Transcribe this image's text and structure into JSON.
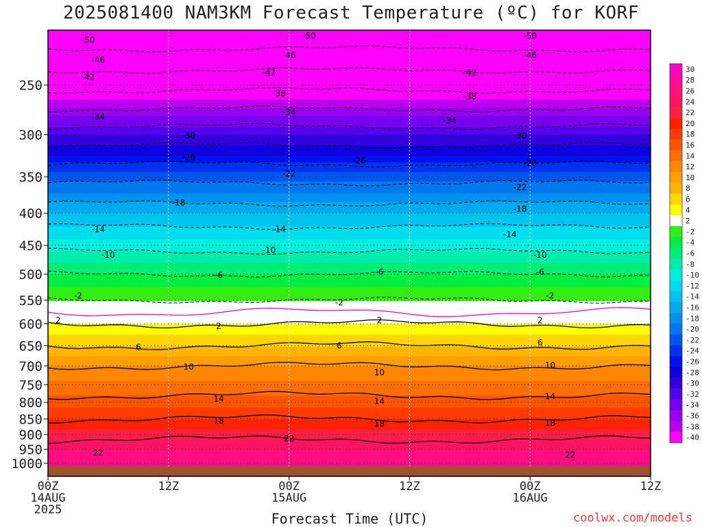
{
  "title": "2025081400 NAM3KM Forecast Temperature (ºC) for KORF",
  "chart_data": {
    "type": "heatmap",
    "title": "2025081400 NAM3KM Forecast Temperature (ºC) for KORF",
    "xlabel": "Forecast Time (UTC)",
    "ylabel": "",
    "x_ticks": [
      {
        "hour": 0,
        "lines": [
          "00Z",
          "14AUG",
          "2025"
        ]
      },
      {
        "hour": 12,
        "lines": [
          "12Z"
        ]
      },
      {
        "hour": 24,
        "lines": [
          "00Z",
          "15AUG"
        ]
      },
      {
        "hour": 36,
        "lines": [
          "12Z"
        ]
      },
      {
        "hour": 48,
        "lines": [
          "00Z",
          "16AUG"
        ]
      },
      {
        "hour": 60,
        "lines": [
          "12Z"
        ]
      }
    ],
    "xlim": [
      0,
      60
    ],
    "y_ticks": [
      250,
      300,
      350,
      400,
      450,
      500,
      550,
      600,
      650,
      700,
      750,
      800,
      850,
      900,
      950,
      1000
    ],
    "ylim": [
      1025,
      200
    ],
    "y_scale": "log-pressure",
    "grid": true,
    "colorbar": {
      "labels": [
        "30",
        "28",
        "26",
        "24",
        "22",
        "20",
        "18",
        "16",
        "14",
        "12",
        "10",
        "8",
        "6",
        "4",
        "2",
        "-2",
        "-4",
        "-6",
        "-8",
        "-10",
        "-12",
        "-14",
        "-16",
        "-18",
        "-20",
        "-22",
        "-24",
        "-26",
        "-28",
        "-30",
        "-32",
        "-34",
        "-36",
        "-38",
        "-40"
      ],
      "colors": [
        "#ff00cc",
        "#ff0a9b",
        "#ff0f82",
        "#ff1464",
        "#ff1e46",
        "#ff2200",
        "#ff3c00",
        "#ff5500",
        "#ff6e00",
        "#ff8700",
        "#ff9e00",
        "#ffb400",
        "#ffd500",
        "#ffff00",
        "#ffffff",
        "#33ee11",
        "#00ee44",
        "#00ee77",
        "#00eeaa",
        "#00eedd",
        "#00ddee",
        "#00c4ee",
        "#00aaee",
        "#0090ee",
        "#0077ee",
        "#0055ee",
        "#0033ee",
        "#0011ee",
        "#1100dd",
        "#3300dd",
        "#5500ee",
        "#7700ee",
        "#9900ee",
        "#bb00ee",
        "#ff00ff"
      ],
      "placement": "right"
    },
    "contour_labels": [
      {
        "text": "-50",
        "hour": 4,
        "p": 212
      },
      {
        "text": "-50",
        "hour": 26,
        "p": 209
      },
      {
        "text": "-50",
        "hour": 48,
        "p": 209
      },
      {
        "text": "-46",
        "hour": 5,
        "p": 228
      },
      {
        "text": "-46",
        "hour": 24,
        "p": 224
      },
      {
        "text": "-46",
        "hour": 48,
        "p": 224
      },
      {
        "text": "-42",
        "hour": 4,
        "p": 243
      },
      {
        "text": "-42",
        "hour": 22,
        "p": 239
      },
      {
        "text": "-42",
        "hour": 42,
        "p": 239
      },
      {
        "text": "-38",
        "hour": 23,
        "p": 258
      },
      {
        "text": "-38",
        "hour": 42,
        "p": 261
      },
      {
        "text": "-34",
        "hour": 5,
        "p": 281
      },
      {
        "text": "-34",
        "hour": 24,
        "p": 276
      },
      {
        "text": "-34",
        "hour": 40,
        "p": 285
      },
      {
        "text": "-30",
        "hour": 14,
        "p": 301
      },
      {
        "text": "-30",
        "hour": 47,
        "p": 301
      },
      {
        "text": "-26",
        "hour": 14,
        "p": 326
      },
      {
        "text": "-26",
        "hour": 31,
        "p": 330
      },
      {
        "text": "-26",
        "hour": 48,
        "p": 333
      },
      {
        "text": "-22",
        "hour": 24,
        "p": 346
      },
      {
        "text": "-22",
        "hour": 47,
        "p": 364
      },
      {
        "text": "-18",
        "hour": 13,
        "p": 385
      },
      {
        "text": "-18",
        "hour": 47,
        "p": 394
      },
      {
        "text": "-14",
        "hour": 5,
        "p": 424
      },
      {
        "text": "-14",
        "hour": 23,
        "p": 424
      },
      {
        "text": "-14",
        "hour": 46,
        "p": 432
      },
      {
        "text": "-10",
        "hour": 6,
        "p": 466
      },
      {
        "text": "-10",
        "hour": 22,
        "p": 458
      },
      {
        "text": "-10",
        "hour": 49,
        "p": 466
      },
      {
        "text": "-6",
        "hour": 17,
        "p": 502
      },
      {
        "text": "-6",
        "hour": 33,
        "p": 496
      },
      {
        "text": "-6",
        "hour": 49,
        "p": 496
      },
      {
        "text": "-2",
        "hour": 3,
        "p": 541
      },
      {
        "text": "-2",
        "hour": 29,
        "p": 555
      },
      {
        "text": "-2",
        "hour": 50,
        "p": 541
      },
      {
        "text": "2",
        "hour": 1,
        "p": 592
      },
      {
        "text": "2",
        "hour": 17,
        "p": 605
      },
      {
        "text": "2",
        "hour": 33,
        "p": 592
      },
      {
        "text": "2",
        "hour": 49,
        "p": 592
      },
      {
        "text": "6",
        "hour": 9,
        "p": 653
      },
      {
        "text": "6",
        "hour": 29,
        "p": 650
      },
      {
        "text": "6",
        "hour": 49,
        "p": 643
      },
      {
        "text": "10",
        "hour": 14,
        "p": 703
      },
      {
        "text": "10",
        "hour": 33,
        "p": 717
      },
      {
        "text": "10",
        "hour": 50,
        "p": 698
      },
      {
        "text": "14",
        "hour": 17,
        "p": 790
      },
      {
        "text": "14",
        "hour": 33,
        "p": 797
      },
      {
        "text": "14",
        "hour": 50,
        "p": 783
      },
      {
        "text": "18",
        "hour": 17,
        "p": 856
      },
      {
        "text": "18",
        "hour": 33,
        "p": 865
      },
      {
        "text": "18",
        "hour": 50,
        "p": 863
      },
      {
        "text": "22",
        "hour": 24,
        "p": 914
      },
      {
        "text": "22",
        "hour": 5,
        "p": 963
      },
      {
        "text": "22",
        "hour": 52,
        "p": 970
      }
    ]
  },
  "credit": "coolwx.com/models"
}
